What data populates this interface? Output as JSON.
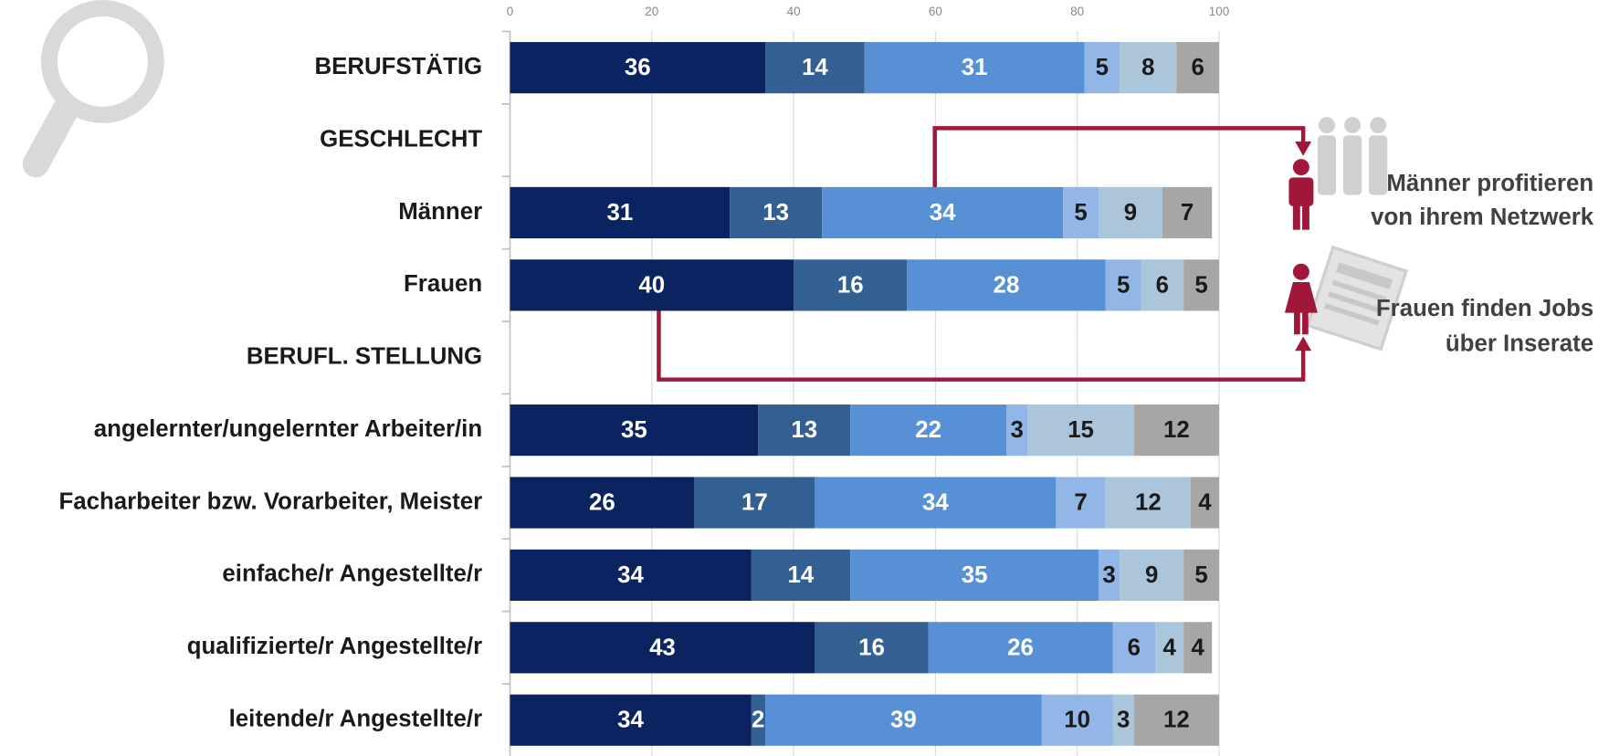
{
  "chart_data": {
    "type": "bar",
    "orientation": "horizontal",
    "stacked": true,
    "categories": [
      "BERUFSTÄTIG",
      "GESCHLECHT",
      "Männer",
      "Frauen",
      "BERUFL. STELLUNG",
      "angelernter/ungelernter Arbeiter/in",
      "Facharbeiter bzw. Vorarbeiter, Meister",
      "einfache/r Angestellte/r",
      "qualifizierte/r Angestellte/r",
      "leitende/r Angestellte/r"
    ],
    "series": [
      {
        "color": "#0b2461",
        "text_color": "#ffffff",
        "values": [
          36,
          null,
          31,
          40,
          null,
          35,
          26,
          34,
          43,
          34
        ]
      },
      {
        "color": "#335f92",
        "text_color": "#ffffff",
        "values": [
          14,
          null,
          13,
          16,
          null,
          13,
          17,
          14,
          16,
          2
        ]
      },
      {
        "color": "#5890d6",
        "text_color": "#ffffff",
        "values": [
          31,
          null,
          34,
          28,
          null,
          22,
          34,
          35,
          26,
          39
        ]
      },
      {
        "color": "#92b6e6",
        "text_color": "#1a1a1a",
        "values": [
          5,
          null,
          5,
          5,
          null,
          3,
          7,
          3,
          6,
          10
        ]
      },
      {
        "color": "#abc6da",
        "text_color": "#1a1a1a",
        "values": [
          8,
          null,
          9,
          6,
          null,
          15,
          12,
          9,
          4,
          3
        ]
      },
      {
        "color": "#a6a6a6",
        "text_color": "#1a1a1a",
        "values": [
          6,
          null,
          7,
          5,
          null,
          12,
          4,
          5,
          4,
          12
        ]
      }
    ],
    "xlim": [
      0,
      100
    ],
    "xticks": [
      0,
      20,
      40,
      60,
      80,
      100
    ],
    "grid": true,
    "annotations": [
      [
        "Männer profitieren",
        "von ihrem Netzwerk"
      ],
      [
        "Frauen finden Jobs",
        "über Inserate"
      ]
    ]
  }
}
